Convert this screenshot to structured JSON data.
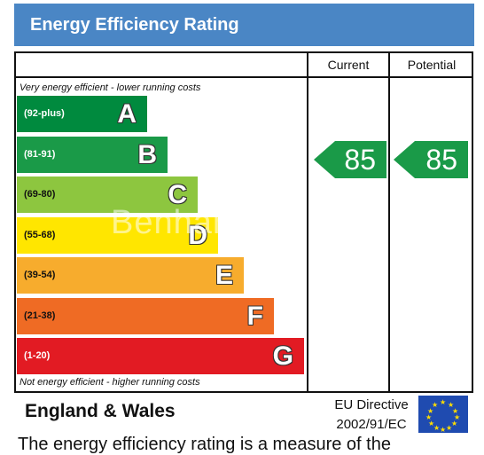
{
  "header": {
    "title": "Energy Efficiency Rating"
  },
  "columns": {
    "current": "Current",
    "potential": "Potential"
  },
  "notes": {
    "top": "Very energy efficient - lower running costs",
    "bottom": "Not energy efficient - higher running costs"
  },
  "bands": [
    {
      "range": "(92-plus)",
      "letter": "A",
      "color": "#008a3e"
    },
    {
      "range": "(81-91)",
      "letter": "B",
      "color": "#1a9a48"
    },
    {
      "range": "(69-80)",
      "letter": "C",
      "color": "#8dc63f"
    },
    {
      "range": "(55-68)",
      "letter": "D",
      "color": "#ffe600"
    },
    {
      "range": "(39-54)",
      "letter": "E",
      "color": "#f7ac2d"
    },
    {
      "range": "(21-38)",
      "letter": "F",
      "color": "#ef6b24"
    },
    {
      "range": "(1-20)",
      "letter": "G",
      "color": "#e21b23"
    }
  ],
  "ratings": {
    "current": "85",
    "potential": "85",
    "arrow_color": "#1a9a48"
  },
  "footer": {
    "region": "England & Wales",
    "directive_line1": "EU Directive",
    "directive_line2": "2002/91/EC"
  },
  "watermark": "Benham",
  "cut_text": "The energy efficiency rating is a measure of the"
}
